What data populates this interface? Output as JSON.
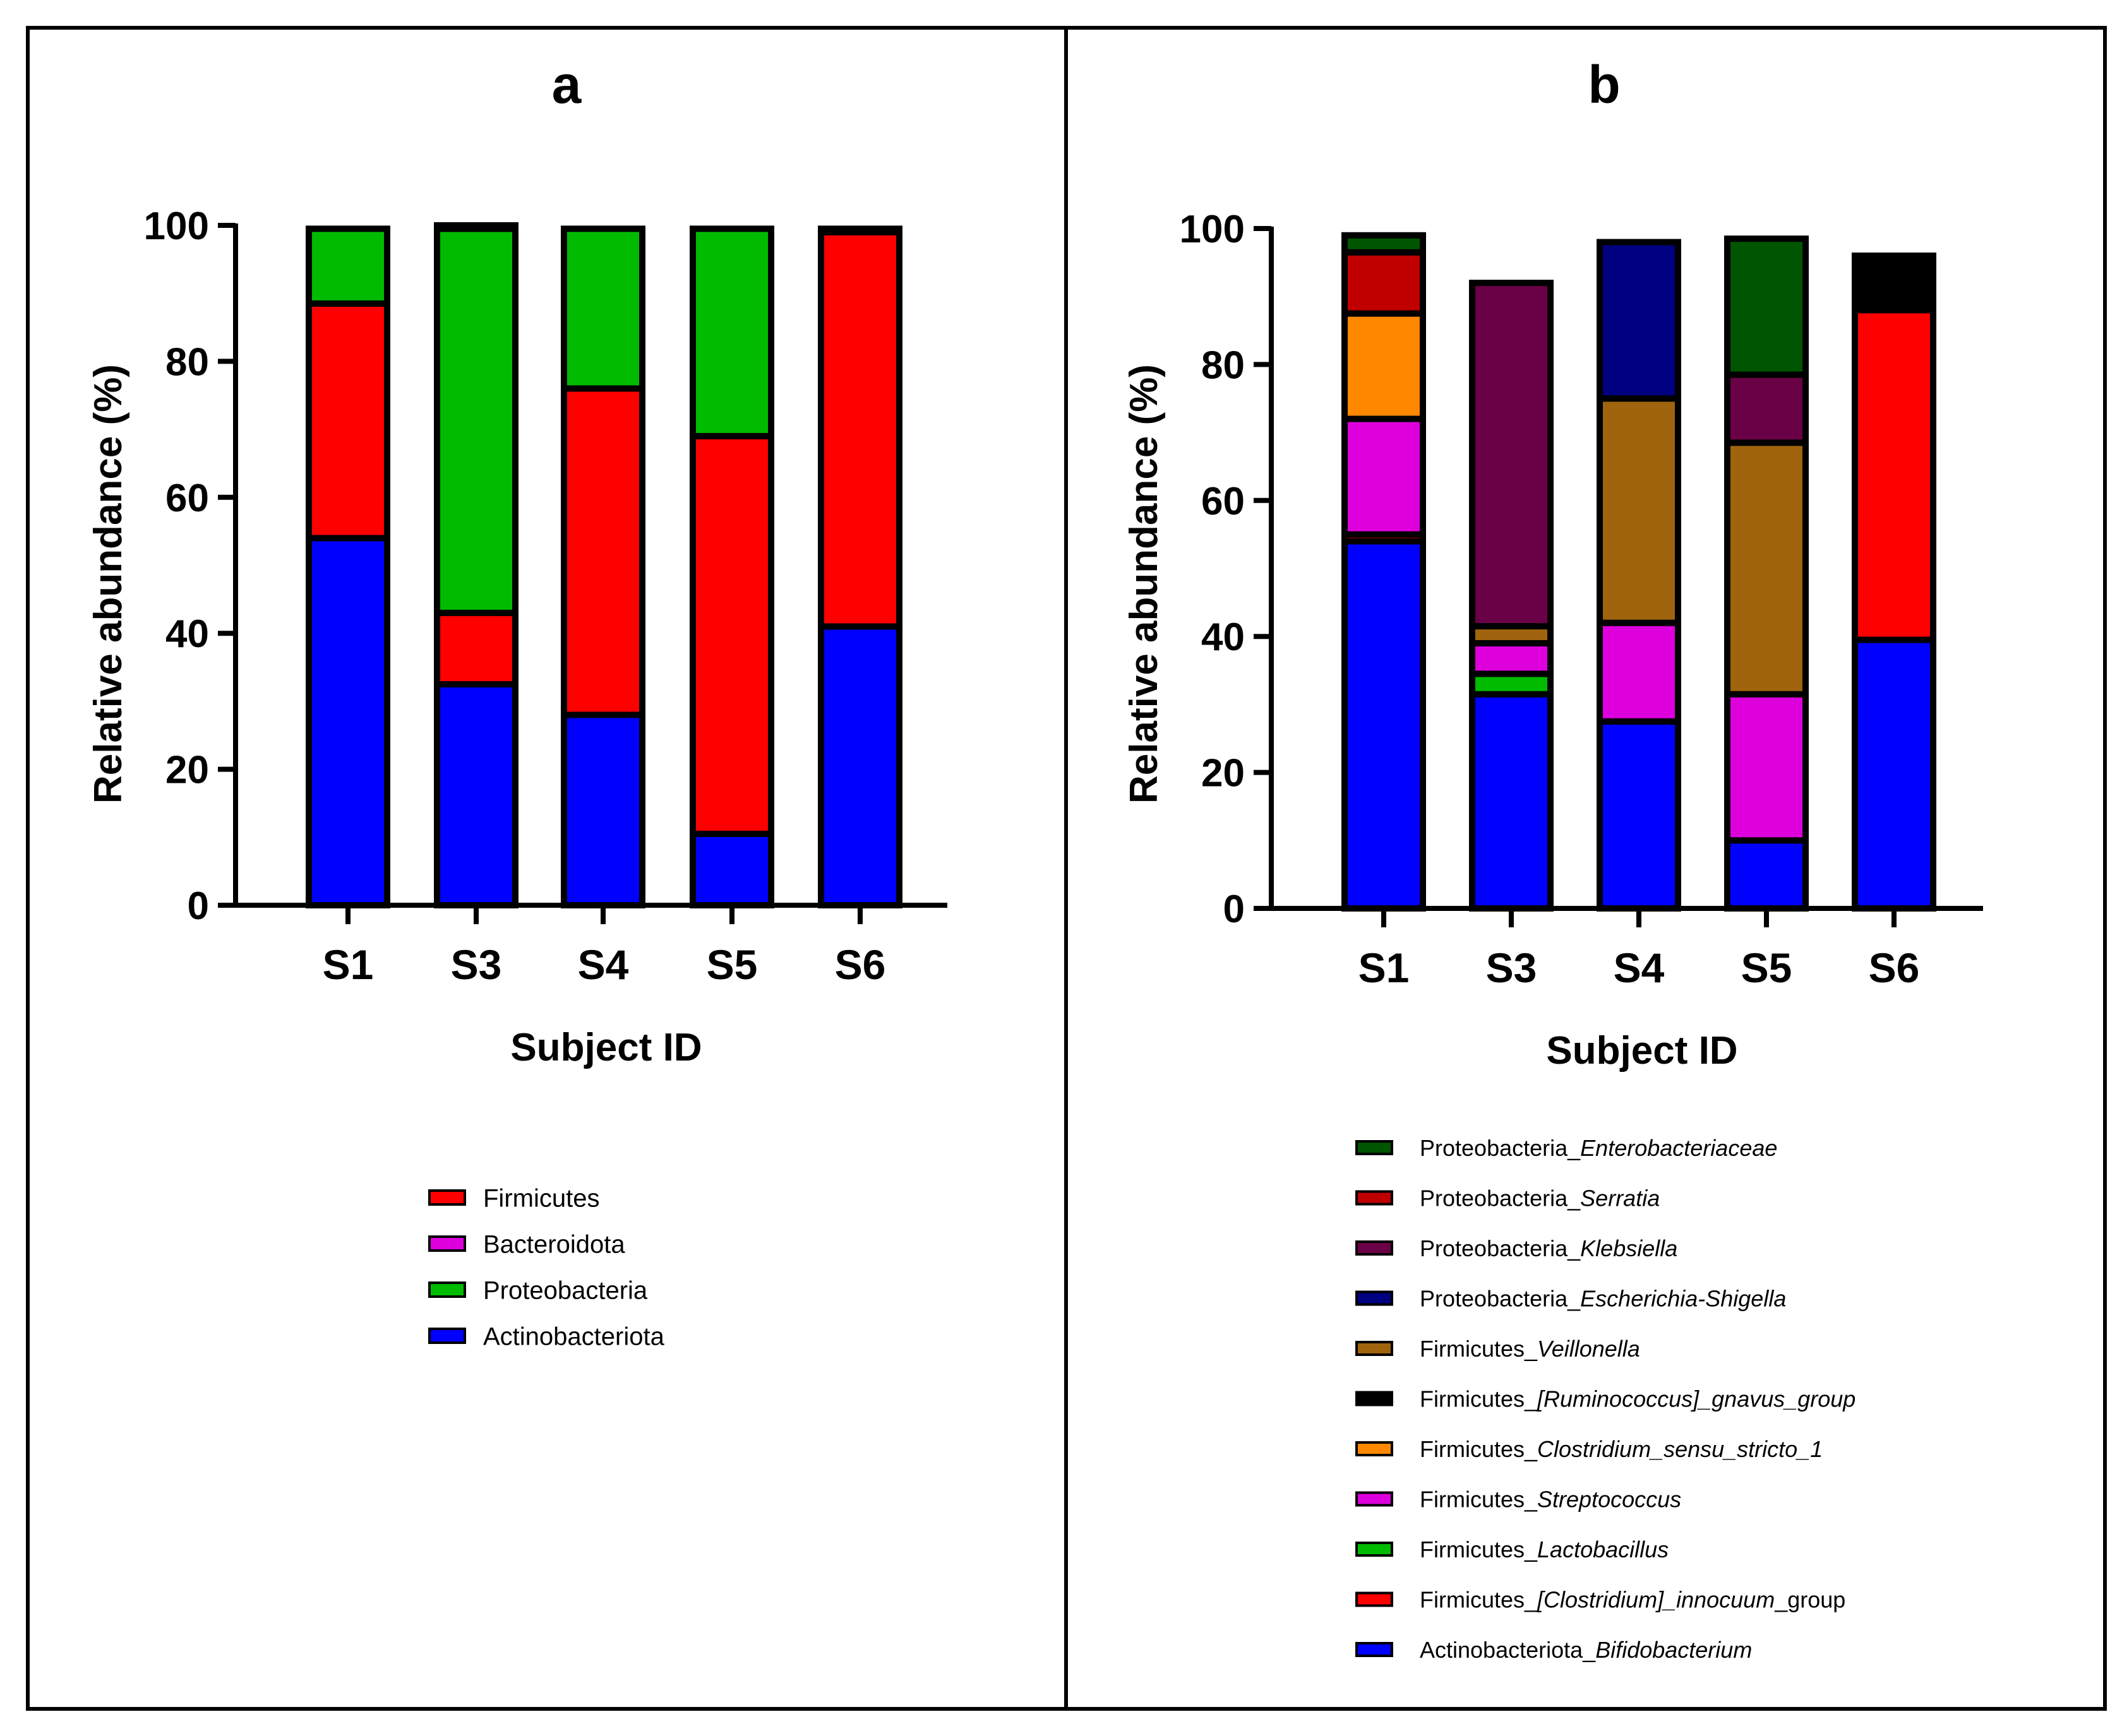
{
  "colors": {
    "Actinobacteriota": "#0000ff",
    "Bacteroidota": "#dd00dd",
    "Proteobacteria": "#00bb00",
    "Firmicutes": "#ff0000",
    "Actinobacteriota_Bifidobacterium": "#0000ff",
    "Firmicutes_[Clostridium]_innocuum_group": "#ff0000",
    "Firmicutes_Lactobacillus": "#00bb00",
    "Firmicutes_Streptococcus": "#dd00dd",
    "Firmicutes_Clostridium_sensu_stricto_1": "#ff8800",
    "Firmicutes_[Ruminococcus]_gnavus_group": "#000000",
    "Firmicutes_Veillonella": "#a0640f",
    "Proteobacteria_Escherichia-Shigella": "#000080",
    "Proteobacteria_Klebsiella": "#6a0046",
    "Proteobacteria_Serratia": "#c00000",
    "Proteobacteria_Enterobacteriaceae": "#005500"
  },
  "chart_data": [
    {
      "type": "bar",
      "stacked": true,
      "panel_label": "a",
      "xlabel": "Subject ID",
      "ylabel": "Relative abundance (%)",
      "ylim": [
        0,
        100
      ],
      "yticks": [
        0,
        20,
        40,
        60,
        80,
        100
      ],
      "categories": [
        "S1",
        "S3",
        "S4",
        "S5",
        "S6"
      ],
      "series": [
        {
          "name": "Actinobacteriota",
          "values": [
            54,
            32.5,
            28,
            10.5,
            41
          ]
        },
        {
          "name": "Firmicutes",
          "values": [
            34.5,
            10.5,
            48,
            58.5,
            58
          ]
        },
        {
          "name": "Proteobacteria",
          "values": [
            11,
            56.5,
            23.5,
            30.5,
            0.5
          ]
        },
        {
          "name": "Bacteroidota",
          "values": [
            0,
            0.5,
            0,
            0,
            0
          ]
        }
      ],
      "legend": [
        {
          "name": "Firmicutes",
          "label": "Firmicutes"
        },
        {
          "name": "Bacteroidota",
          "label": "Bacteroidota"
        },
        {
          "name": "Proteobacteria",
          "label": "Proteobacteria"
        },
        {
          "name": "Actinobacteriota",
          "label": "Actinobacteriota"
        }
      ]
    },
    {
      "type": "bar",
      "stacked": true,
      "panel_label": "b",
      "xlabel": "Subject ID",
      "ylabel": "Relative abundance (%)",
      "ylim": [
        0,
        100
      ],
      "yticks": [
        0,
        20,
        40,
        60,
        80,
        100
      ],
      "categories": [
        "S1",
        "S3",
        "S4",
        "S5",
        "S6"
      ],
      "series": [
        {
          "name": "Actinobacteriota_Bifidobacterium",
          "values": [
            54,
            31.5,
            27.5,
            10,
            39.5
          ]
        },
        {
          "name": "Firmicutes_[Clostridium]_innocuum_group",
          "values": [
            1,
            0,
            0,
            0,
            48.5
          ]
        },
        {
          "name": "Firmicutes_Lactobacillus",
          "values": [
            0,
            3,
            0,
            0,
            0
          ]
        },
        {
          "name": "Firmicutes_Streptococcus",
          "values": [
            17,
            4.5,
            14.5,
            21.5,
            0
          ]
        },
        {
          "name": "Firmicutes_Clostridium_sensu_stricto_1",
          "values": [
            15.5,
            0,
            0,
            0,
            0
          ]
        },
        {
          "name": "Firmicutes_[Ruminococcus]_gnavus_group",
          "values": [
            0,
            0,
            0,
            0,
            8
          ]
        },
        {
          "name": "Firmicutes_Veillonella",
          "values": [
            0,
            2.5,
            33,
            37,
            0
          ]
        },
        {
          "name": "Proteobacteria_Escherichia-Shigella",
          "values": [
            0,
            0,
            23,
            0,
            0
          ]
        },
        {
          "name": "Proteobacteria_Klebsiella",
          "values": [
            0,
            50.5,
            0,
            10,
            0
          ]
        },
        {
          "name": "Proteobacteria_Serratia",
          "values": [
            9,
            0,
            0,
            0,
            0
          ]
        },
        {
          "name": "Proteobacteria_Enterobacteriaceae",
          "values": [
            2.5,
            0,
            0,
            20,
            0
          ]
        }
      ],
      "legend": [
        {
          "name": "Proteobacteria_Enterobacteriaceae",
          "prefix": "Proteobacteria_",
          "italic": "Enterobacteriaceae",
          "suffix": ""
        },
        {
          "name": "Proteobacteria_Serratia",
          "prefix": "Proteobacteria_",
          "italic": "Serratia",
          "suffix": ""
        },
        {
          "name": "Proteobacteria_Klebsiella",
          "prefix": "Proteobacteria_",
          "italic": "Klebsiella",
          "suffix": ""
        },
        {
          "name": "Proteobacteria_Escherichia-Shigella",
          "prefix": "Proteobacteria_",
          "italic": "Escherichia-Shigella",
          "suffix": ""
        },
        {
          "name": "Firmicutes_Veillonella",
          "prefix": "Firmicutes_",
          "italic": "Veillonella",
          "suffix": ""
        },
        {
          "name": "Firmicutes_[Ruminococcus]_gnavus_group",
          "prefix": "Firmicutes_",
          "italic": "[Ruminococcus]_gnavus_group",
          "suffix": ""
        },
        {
          "name": "Firmicutes_Clostridium_sensu_stricto_1",
          "prefix": "Firmicutes_",
          "italic": "Clostridium_sensu_stricto_1",
          "suffix": ""
        },
        {
          "name": "Firmicutes_Streptococcus",
          "prefix": "Firmicutes_",
          "italic": "Streptococcus",
          "suffix": ""
        },
        {
          "name": "Firmicutes_Lactobacillus",
          "prefix": "Firmicutes_",
          "italic": "Lactobacillus",
          "suffix": ""
        },
        {
          "name": "Firmicutes_[Clostridium]_innocuum_group",
          "prefix": "Firmicutes_",
          "italic": "[Clostridium]_innocuum",
          "suffix": "_group"
        },
        {
          "name": "Actinobacteriota_Bifidobacterium",
          "prefix": "Actinobacteriota_",
          "italic": "Bifidobacterium",
          "suffix": ""
        }
      ]
    }
  ]
}
